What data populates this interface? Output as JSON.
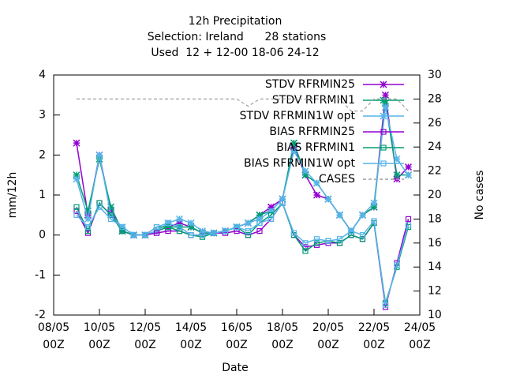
{
  "chart_data": {
    "type": "line",
    "title": "12h Precipitation",
    "subtitle": [
      "Selection: Ireland      28 stations",
      "Used  12 + 12-00 18-06 24-12"
    ],
    "x_label": "Date",
    "y_label": "mm/12h",
    "y2_label": "No cases",
    "x": [
      9,
      9.5,
      10,
      10.5,
      11,
      11.5,
      12,
      12.5,
      13,
      13.5,
      14,
      14.5,
      15,
      15.5,
      16,
      16.5,
      17,
      17.5,
      18,
      18.5,
      19,
      19.5,
      20,
      20.5,
      21,
      21.5,
      22,
      22.5,
      23,
      23.5
    ],
    "xlim": [
      8,
      24
    ],
    "xticks": [
      {
        "value": 8,
        "label": "08/05 00Z"
      },
      {
        "value": 10,
        "label": "10/05 00Z"
      },
      {
        "value": 12,
        "label": "12/05 00Z"
      },
      {
        "value": 14,
        "label": "14/05 00Z"
      },
      {
        "value": 16,
        "label": "16/05 00Z"
      },
      {
        "value": 18,
        "label": "18/05 00Z"
      },
      {
        "value": 20,
        "label": "20/05 00Z"
      },
      {
        "value": 22,
        "label": "22/05 00Z"
      },
      {
        "value": 24,
        "label": "24/05 00Z"
      }
    ],
    "ylim": [
      -2,
      4
    ],
    "yticks": [
      -2,
      -1,
      0,
      1,
      2,
      3,
      4
    ],
    "y2lim": [
      10,
      30
    ],
    "y2ticks": [
      10,
      12,
      14,
      16,
      18,
      20,
      22,
      24,
      26,
      28,
      30
    ],
    "grid": false,
    "legend": "top-right",
    "series": [
      {
        "name": "STDV RFRMIN25",
        "color": "#9400d3",
        "marker": "star",
        "values": [
          2.3,
          0.5,
          2.0,
          0.6,
          0.1,
          0,
          0,
          0.1,
          0.2,
          0.3,
          0.2,
          0.05,
          0.05,
          0.1,
          0.2,
          0.3,
          0.5,
          0.7,
          0.9,
          2.2,
          1.5,
          1.0,
          0.9,
          0.5,
          0.1,
          0.5,
          0.7,
          3.5,
          1.4,
          1.7
        ]
      },
      {
        "name": "STDV RFRMIN1",
        "color": "#009e73",
        "marker": "star",
        "values": [
          1.5,
          0.6,
          1.9,
          0.7,
          0.1,
          0,
          0,
          0.1,
          0.2,
          0.2,
          0.2,
          0.05,
          0.05,
          0.1,
          0.2,
          0.3,
          0.5,
          0.6,
          0.9,
          2.3,
          1.5,
          1.3,
          0.9,
          0.5,
          0.1,
          0.5,
          0.7,
          3.3,
          1.5,
          1.5
        ]
      },
      {
        "name": "STDV RFRMIN1W opt",
        "color": "#56b4e9",
        "marker": "star",
        "values": [
          1.4,
          0.4,
          2.0,
          0.5,
          0.2,
          0,
          0,
          0.1,
          0.3,
          0.4,
          0.3,
          0.1,
          0.05,
          0.1,
          0.2,
          0.3,
          0.4,
          0.6,
          0.9,
          2.1,
          1.6,
          1.3,
          0.9,
          0.5,
          0.1,
          0.5,
          0.8,
          3.2,
          1.9,
          1.5
        ]
      },
      {
        "name": "BIAS RFRMIN25",
        "color": "#9400d3",
        "marker": "square",
        "values": [
          0.6,
          0.05,
          0.8,
          0.5,
          0.1,
          0,
          0,
          0.05,
          0.1,
          0.1,
          0,
          0,
          0.05,
          0.05,
          0.1,
          0,
          0.1,
          0.4,
          0.8,
          0,
          -0.3,
          -0.25,
          -0.2,
          -0.2,
          0,
          -0.1,
          0.3,
          -1.8,
          -0.7,
          0.4
        ]
      },
      {
        "name": "BIAS RFRMIN1",
        "color": "#009e73",
        "marker": "square",
        "values": [
          0.7,
          0.1,
          0.8,
          0.5,
          0.1,
          0,
          0,
          0.2,
          0.2,
          0.1,
          0,
          -0.05,
          0.05,
          0.1,
          0.2,
          0,
          0.3,
          0.5,
          0.8,
          0,
          -0.4,
          -0.2,
          -0.15,
          -0.2,
          0,
          -0.1,
          0.3,
          -1.7,
          -0.8,
          0.2
        ]
      },
      {
        "name": "BIAS RFRMIN1W opt",
        "color": "#56b4e9",
        "marker": "square",
        "values": [
          0.5,
          0.2,
          0.7,
          0.4,
          0.2,
          0,
          0,
          0.2,
          0.3,
          0.2,
          0,
          0,
          0.05,
          0.1,
          0.2,
          0.1,
          0.3,
          0.4,
          0.8,
          0.05,
          -0.2,
          -0.1,
          -0.15,
          -0.1,
          0.1,
          0,
          0.35,
          -1.75,
          -0.75,
          0.25
        ]
      },
      {
        "name": "CASES",
        "color": "#a0a0a0",
        "marker": "none",
        "dash": true,
        "axis": "y2",
        "values": [
          28,
          28,
          28,
          28,
          28,
          28,
          28,
          28,
          28,
          28,
          28,
          28,
          28,
          28,
          28,
          27.4,
          28,
          28,
          28,
          28,
          28,
          28,
          28,
          28,
          27,
          27,
          28,
          28,
          28,
          27
        ]
      }
    ]
  }
}
